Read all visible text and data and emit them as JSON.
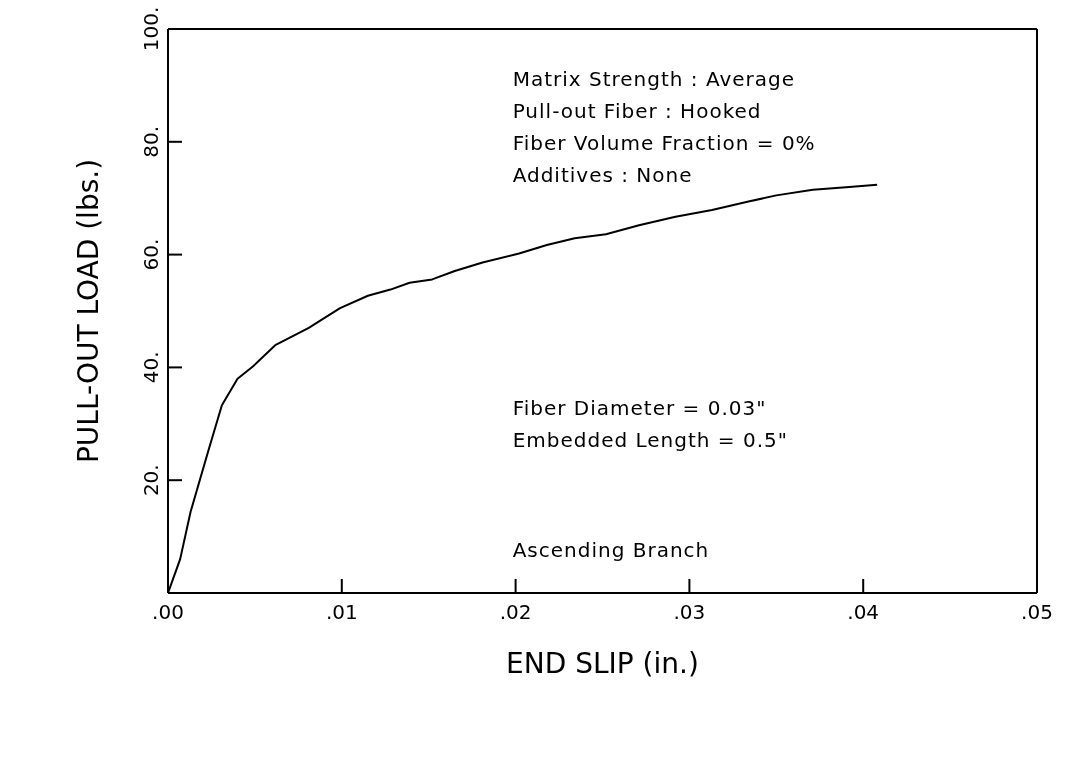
{
  "chart_data": {
    "type": "line",
    "xlabel": "END SLIP   (in.)",
    "ylabel": "PULL-OUT LOAD (lbs.)",
    "x": [
      0,
      0.0007,
      0.0013,
      0.0023,
      0.0031,
      0.004,
      0.0049,
      0.0062,
      0.0081,
      0.0099,
      0.0115,
      0.0128,
      0.0139,
      0.0152,
      0.0165,
      0.0181,
      0.0202,
      0.0218,
      0.0234,
      0.0252,
      0.0271,
      0.0292,
      0.0313,
      0.0334,
      0.035,
      0.0371,
      0.0392,
      0.0408
    ],
    "series": [
      {
        "color": "#000000",
        "values": [
          0,
          6,
          14.4,
          25,
          33.3,
          38,
          40.2,
          44,
          47,
          50.5,
          52.7,
          53.8,
          55,
          55.6,
          57.1,
          58.6,
          60.2,
          61.7,
          62.9,
          63.6,
          65.2,
          66.7,
          67.9,
          69.4,
          70.5,
          71.5,
          72,
          72.4
        ]
      }
    ],
    "xlim": [
      0,
      0.05
    ],
    "xticks": [
      {
        "value": 0,
        "label": ".00"
      },
      {
        "value": 0.01,
        "label": ".01"
      },
      {
        "value": 0.02,
        "label": ".02"
      },
      {
        "value": 0.03,
        "label": ".03"
      },
      {
        "value": 0.04,
        "label": ".04"
      },
      {
        "value": 0.05,
        "label": ".05"
      }
    ],
    "ylim": [
      0,
      100
    ],
    "yticks": [
      {
        "value": 20,
        "label": "20."
      },
      {
        "value": 40,
        "label": "40."
      },
      {
        "value": 60,
        "label": "60."
      },
      {
        "value": 80,
        "label": "80."
      },
      {
        "value": 100,
        "label": "100."
      }
    ],
    "grid": false,
    "legend": false,
    "marker": "none",
    "line_style": "solid",
    "annotations": [
      "Matrix Strength : Average",
      "Pull-out Fiber : Hooked",
      "Fiber Volume Fraction = 0%",
      "Additives : None",
      "Fiber Diameter = 0.03\"",
      "Embedded Length = 0.5\"",
      "Ascending Branch"
    ]
  }
}
